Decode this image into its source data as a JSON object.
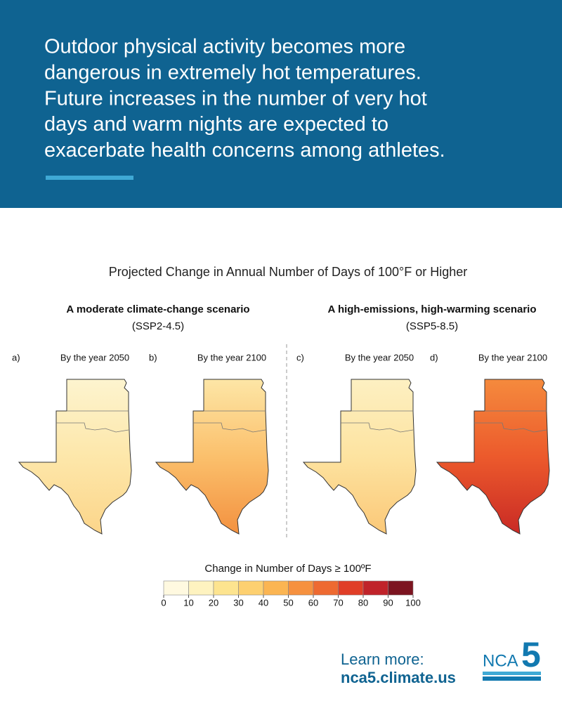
{
  "header": {
    "lines": [
      "Outdoor physical activity becomes more",
      "dangerous in extremely hot temperatures.",
      "Future increases in the number of very hot",
      "days and warm nights are expected to",
      "exacerbate health concerns among athletes."
    ]
  },
  "figure": {
    "title": "Projected Change in Annual Number of Days of 100°F or Higher",
    "scenarios": [
      {
        "name": "A moderate climate-change scenario",
        "code": "(SSP2-4.5)"
      },
      {
        "name": "A high-emissions, high-warming scenario",
        "code": "(SSP5-8.5)"
      }
    ],
    "panels": [
      {
        "letter": "a)",
        "label": "By the year 2050",
        "fill": [
          "#fdf4cf",
          "#fde7aa",
          "#fcd58a"
        ]
      },
      {
        "letter": "b)",
        "label": "By the year 2100",
        "fill": [
          "#fde6a6",
          "#fbc06c",
          "#f39140"
        ]
      },
      {
        "letter": "c)",
        "label": "By the year 2050",
        "fill": [
          "#fdf0c2",
          "#fde3a0",
          "#fbc878"
        ]
      },
      {
        "letter": "d)",
        "label": "By the year 2100",
        "fill": [
          "#f58a3d",
          "#ec5a2c",
          "#c92a25"
        ]
      }
    ],
    "legend": {
      "title": "Change in Number of Days ≥ 100ºF",
      "ticks": [
        0,
        10,
        20,
        30,
        40,
        50,
        60,
        70,
        80,
        90,
        100
      ],
      "colors": [
        "#fff9e0",
        "#fef3c0",
        "#fde48f",
        "#fdd070",
        "#fbb552",
        "#f6913f",
        "#ee6a31",
        "#e03e27",
        "#c0232a",
        "#7c1420"
      ]
    }
  },
  "footer": {
    "prompt": "Learn more:",
    "url": "nca5.climate.us"
  },
  "logo": {
    "name": "NCA",
    "digit": "5"
  }
}
